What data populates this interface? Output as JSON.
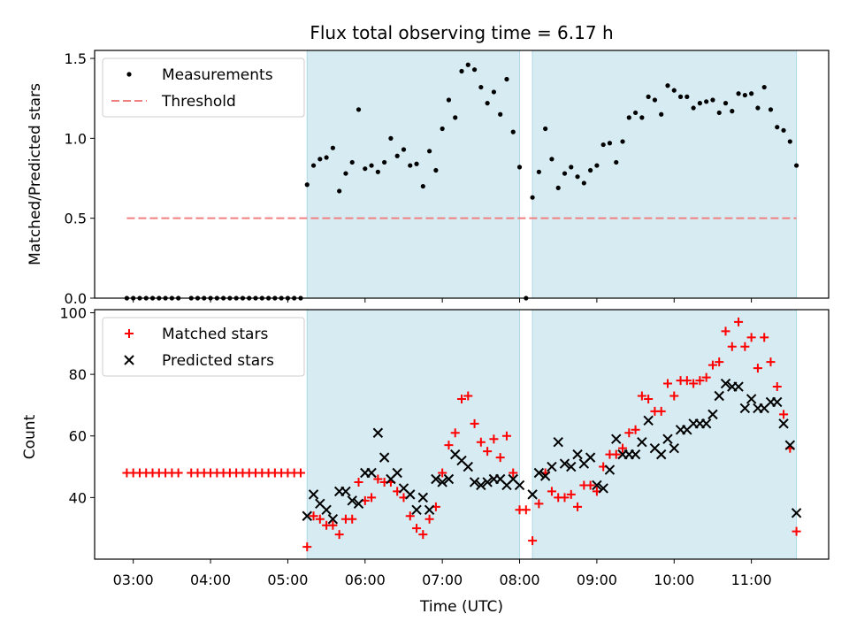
{
  "chart_data": [
    {
      "type": "scatter",
      "title": "Flux total observing time = 6.17 h",
      "xlabel": "",
      "ylabel": "Matched/Predicted stars",
      "xlim": [
        "02:30",
        "12:00"
      ],
      "ylim": [
        0,
        1.55
      ],
      "yticks": [
        0.0,
        0.5,
        1.0,
        1.5
      ],
      "ytick_labels": [
        "0.0",
        "0.5",
        "1.0",
        "1.5"
      ],
      "grid": false,
      "legend_position": "top-left",
      "shaded_intervals": [
        [
          "05:15",
          "08:00"
        ],
        [
          "08:10",
          "11:35"
        ]
      ],
      "shade_color": "#add8e6",
      "series": [
        {
          "name": "Measurements",
          "style": "dot",
          "color": "#000000",
          "x": [
            "02:55",
            "03:00",
            "03:05",
            "03:10",
            "03:15",
            "03:20",
            "03:25",
            "03:30",
            "03:35",
            "03:45",
            "03:50",
            "03:55",
            "04:00",
            "04:05",
            "04:10",
            "04:15",
            "04:20",
            "04:25",
            "04:30",
            "04:35",
            "04:40",
            "04:45",
            "04:50",
            "04:55",
            "05:00",
            "05:05",
            "05:10",
            "05:15",
            "05:20",
            "05:25",
            "05:30",
            "05:35",
            "05:40",
            "05:45",
            "05:50",
            "05:55",
            "06:00",
            "06:05",
            "06:10",
            "06:15",
            "06:20",
            "06:25",
            "06:30",
            "06:35",
            "06:40",
            "06:45",
            "06:50",
            "06:55",
            "07:00",
            "07:05",
            "07:10",
            "07:15",
            "07:20",
            "07:25",
            "07:30",
            "07:35",
            "07:40",
            "07:45",
            "07:50",
            "07:55",
            "08:00",
            "08:05",
            "08:10",
            "08:15",
            "08:20",
            "08:25",
            "08:30",
            "08:35",
            "08:40",
            "08:45",
            "08:50",
            "08:55",
            "09:00",
            "09:05",
            "09:10",
            "09:15",
            "09:20",
            "09:25",
            "09:30",
            "09:35",
            "09:40",
            "09:45",
            "09:50",
            "09:55",
            "10:00",
            "10:05",
            "10:10",
            "10:15",
            "10:20",
            "10:25",
            "10:30",
            "10:35",
            "10:40",
            "10:45",
            "10:50",
            "10:55",
            "11:00",
            "11:05",
            "11:10",
            "11:15",
            "11:20",
            "11:25",
            "11:30",
            "11:35"
          ],
          "y": [
            0,
            0,
            0,
            0,
            0,
            0,
            0,
            0,
            0,
            0,
            0,
            0,
            0,
            0,
            0,
            0,
            0,
            0,
            0,
            0,
            0,
            0,
            0,
            0,
            0,
            0,
            0,
            0.71,
            0.83,
            0.87,
            0.88,
            0.94,
            0.67,
            0.78,
            0.85,
            1.18,
            0.81,
            0.83,
            0.79,
            0.85,
            1.0,
            0.89,
            0.93,
            0.83,
            0.84,
            0.7,
            0.92,
            0.8,
            1.06,
            1.24,
            1.13,
            1.42,
            1.46,
            1.43,
            1.32,
            1.22,
            1.29,
            1.15,
            1.37,
            1.04,
            0.82,
            0.0,
            0.63,
            0.79,
            1.06,
            0.87,
            0.69,
            0.78,
            0.82,
            0.76,
            0.72,
            0.8,
            0.83,
            0.96,
            0.97,
            0.85,
            0.98,
            1.13,
            1.16,
            1.13,
            1.26,
            1.24,
            1.15,
            1.33,
            1.3,
            1.26,
            1.26,
            1.19,
            1.22,
            1.23,
            1.24,
            1.16,
            1.22,
            1.17,
            1.28,
            1.27,
            1.28,
            1.19,
            1.32,
            1.18,
            1.07,
            1.05,
            0.98,
            0.83
          ]
        },
        {
          "name": "Threshold",
          "style": "dashed-line",
          "color": "#f08080",
          "x": [
            "02:55",
            "11:35"
          ],
          "y": [
            0.5,
            0.5
          ]
        }
      ]
    },
    {
      "type": "scatter",
      "title": "",
      "xlabel": "Time (UTC)",
      "ylabel": "Count",
      "xlim": [
        "02:30",
        "12:00"
      ],
      "ylim": [
        20,
        101
      ],
      "yticks": [
        40,
        60,
        80,
        100
      ],
      "ytick_labels": [
        "40",
        "60",
        "80",
        "100"
      ],
      "xticks": [
        "03:00",
        "04:00",
        "05:00",
        "06:00",
        "07:00",
        "08:00",
        "09:00",
        "10:00",
        "11:00"
      ],
      "xtick_labels": [
        "03:00",
        "04:00",
        "05:00",
        "06:00",
        "07:00",
        "08:00",
        "09:00",
        "10:00",
        "11:00"
      ],
      "grid": false,
      "legend_position": "top-left",
      "shaded_intervals": [
        [
          "05:15",
          "08:00"
        ],
        [
          "08:10",
          "11:35"
        ]
      ],
      "shade_color": "#add8e6",
      "series": [
        {
          "name": "Matched stars",
          "style": "plus",
          "color": "#ff0000",
          "x": [
            "02:55",
            "03:00",
            "03:05",
            "03:10",
            "03:15",
            "03:20",
            "03:25",
            "03:30",
            "03:35",
            "03:45",
            "03:50",
            "03:55",
            "04:00",
            "04:05",
            "04:10",
            "04:15",
            "04:20",
            "04:25",
            "04:30",
            "04:35",
            "04:40",
            "04:45",
            "04:50",
            "04:55",
            "05:00",
            "05:05",
            "05:10",
            "05:15",
            "05:20",
            "05:25",
            "05:30",
            "05:35",
            "05:40",
            "05:45",
            "05:50",
            "05:55",
            "06:00",
            "06:05",
            "06:10",
            "06:15",
            "06:20",
            "06:25",
            "06:30",
            "06:35",
            "06:40",
            "06:45",
            "06:50",
            "06:55",
            "07:00",
            "07:05",
            "07:10",
            "07:15",
            "07:20",
            "07:25",
            "07:30",
            "07:35",
            "07:40",
            "07:45",
            "07:50",
            "07:55",
            "08:00",
            "08:05",
            "08:10",
            "08:15",
            "08:20",
            "08:25",
            "08:30",
            "08:35",
            "08:40",
            "08:45",
            "08:50",
            "08:55",
            "09:00",
            "09:05",
            "09:10",
            "09:15",
            "09:20",
            "09:25",
            "09:30",
            "09:35",
            "09:40",
            "09:45",
            "09:50",
            "09:55",
            "10:00",
            "10:05",
            "10:10",
            "10:15",
            "10:20",
            "10:25",
            "10:30",
            "10:35",
            "10:40",
            "10:45",
            "10:50",
            "10:55",
            "11:00",
            "11:05",
            "11:10",
            "11:15",
            "11:20",
            "11:25",
            "11:30",
            "11:35"
          ],
          "y": [
            48,
            48,
            48,
            48,
            48,
            48,
            48,
            48,
            48,
            48,
            48,
            48,
            48,
            48,
            48,
            48,
            48,
            48,
            48,
            48,
            48,
            48,
            48,
            48,
            48,
            48,
            48,
            24,
            34,
            33,
            31,
            31,
            28,
            33,
            33,
            45,
            39,
            40,
            46,
            45,
            45,
            42,
            40,
            34,
            30,
            28,
            33,
            37,
            48,
            57,
            61,
            72,
            73,
            64,
            58,
            55,
            59,
            53,
            60,
            48,
            36,
            36,
            26,
            38,
            48,
            42,
            40,
            40,
            41,
            37,
            44,
            44,
            42,
            50,
            54,
            54,
            56,
            61,
            62,
            73,
            72,
            68,
            68,
            77,
            73,
            78,
            78,
            77,
            78,
            79,
            83,
            84,
            94,
            89,
            97,
            89,
            92,
            82,
            92,
            84,
            76,
            67,
            56,
            29
          ]
        },
        {
          "name": "Predicted stars",
          "style": "x",
          "color": "#000000",
          "x": [
            "05:15",
            "05:20",
            "05:25",
            "05:30",
            "05:35",
            "05:40",
            "05:45",
            "05:50",
            "05:55",
            "06:00",
            "06:05",
            "06:10",
            "06:15",
            "06:20",
            "06:25",
            "06:30",
            "06:35",
            "06:40",
            "06:45",
            "06:50",
            "06:55",
            "07:00",
            "07:05",
            "07:10",
            "07:15",
            "07:20",
            "07:25",
            "07:30",
            "07:35",
            "07:40",
            "07:45",
            "07:50",
            "07:55",
            "08:00",
            "08:10",
            "08:15",
            "08:20",
            "08:25",
            "08:30",
            "08:35",
            "08:40",
            "08:45",
            "08:50",
            "08:55",
            "09:00",
            "09:05",
            "09:10",
            "09:15",
            "09:20",
            "09:25",
            "09:30",
            "09:35",
            "09:40",
            "09:45",
            "09:50",
            "09:55",
            "10:00",
            "10:05",
            "10:10",
            "10:15",
            "10:20",
            "10:25",
            "10:30",
            "10:35",
            "10:40",
            "10:45",
            "10:50",
            "10:55",
            "11:00",
            "11:05",
            "11:10",
            "11:15",
            "11:20",
            "11:25",
            "11:30",
            "11:35"
          ],
          "y": [
            34,
            41,
            38,
            36,
            33,
            42,
            42,
            39,
            38,
            48,
            48,
            61,
            53,
            46,
            48,
            43,
            41,
            36,
            40,
            36,
            46,
            45,
            46,
            54,
            52,
            50,
            45,
            44,
            45,
            46,
            46,
            44,
            46,
            44,
            41,
            48,
            47,
            50,
            58,
            51,
            50,
            54,
            51,
            53,
            44,
            43,
            49,
            59,
            54,
            54,
            54,
            58,
            65,
            56,
            54,
            59,
            56,
            62,
            62,
            64,
            64,
            64,
            67,
            73,
            77,
            76,
            76,
            69,
            72,
            69,
            69,
            71,
            71,
            64,
            57,
            35
          ]
        }
      ]
    }
  ]
}
